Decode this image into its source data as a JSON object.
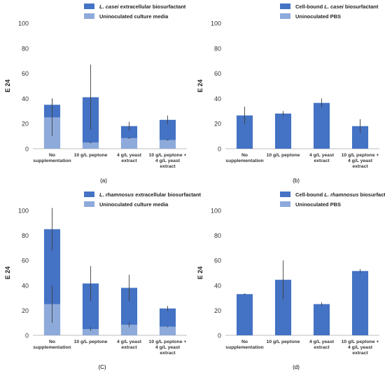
{
  "chart_data": [
    {
      "type": "bar",
      "panel_label": "(a)",
      "ylabel": "E 24",
      "ylim": [
        0,
        100
      ],
      "yticks": [
        0,
        20,
        40,
        60,
        80,
        100
      ],
      "categories": [
        [
          "No",
          "supplementation"
        ],
        [
          "10 g/L peptone"
        ],
        [
          "4 g/L yeast",
          "extract"
        ],
        [
          "10 g/L peptone +",
          "4 g/L yeast",
          "extract"
        ]
      ],
      "legend": [
        {
          "italic": "L. casei",
          "text": " extracellular biosurfactant",
          "color": "#4472c4"
        },
        {
          "italic": "",
          "text": "Uninoculated culture media",
          "color": "#8eaadb"
        }
      ],
      "series": [
        {
          "name": "L. casei extracellular biosurfactant",
          "values": [
            35,
            41,
            18,
            23
          ],
          "err": [
            5,
            26,
            3.5,
            3.5
          ],
          "color": "#4472c4"
        },
        {
          "name": "Uninoculated culture media",
          "values": [
            25,
            5,
            8.5,
            7
          ],
          "err": [
            15,
            0,
            0,
            0
          ],
          "color": "#8eaadb"
        }
      ]
    },
    {
      "type": "bar",
      "panel_label": "(b)",
      "ylabel": "E 24",
      "ylim": [
        0,
        100
      ],
      "yticks": [
        0,
        20,
        40,
        60,
        80,
        100
      ],
      "categories": [
        [
          "No",
          "supplementation"
        ],
        [
          "10 g/L peptone"
        ],
        [
          "4 g/L yeast",
          "extract"
        ],
        [
          "10 g/L peptone +",
          "4 g/L yeast",
          "extract"
        ]
      ],
      "legend": [
        {
          "italic": "",
          "text": "Cell-bound ",
          "italic2": "L. casei",
          "text2": " biosurfactant",
          "color": "#4472c4"
        },
        {
          "italic": "",
          "text": "Uninoculated PBS",
          "color": "#8eaadb"
        }
      ],
      "series": [
        {
          "name": "Cell-bound L. casei biosurfactant",
          "values": [
            26.5,
            28,
            36.5,
            18
          ],
          "err": [
            7,
            2,
            3.5,
            5.5
          ],
          "color": "#4472c4"
        }
      ]
    },
    {
      "type": "bar",
      "panel_label": "(C)",
      "ylabel": "E 24",
      "ylim": [
        0,
        100
      ],
      "yticks": [
        0,
        20,
        40,
        60,
        80,
        100
      ],
      "categories": [
        [
          "No",
          "supplementation"
        ],
        [
          "10 g/L peptone"
        ],
        [
          "4 g/L yeast",
          "extract"
        ],
        [
          "10 g/L peptone +",
          "4 g/L yeast",
          "extract"
        ]
      ],
      "legend": [
        {
          "italic": "L. rhamnosus",
          "text": " extracellular biosurfactant",
          "color": "#4472c4"
        },
        {
          "italic": "",
          "text": "Uninoculated culture media",
          "color": "#8eaadb"
        }
      ],
      "series": [
        {
          "name": "L. rhamnosus extracellular biosurfactant",
          "values": [
            85,
            41.5,
            38,
            21.5
          ],
          "err": [
            17,
            14,
            10.5,
            2
          ],
          "color": "#4472c4"
        },
        {
          "name": "Uninoculated culture media",
          "values": [
            25,
            5,
            8.5,
            7
          ],
          "err": [
            15,
            1.5,
            2,
            0.5
          ],
          "color": "#8eaadb"
        }
      ]
    },
    {
      "type": "bar",
      "panel_label": "(d)",
      "ylabel": "E 24",
      "ylim": [
        0,
        100
      ],
      "yticks": [
        0,
        20,
        40,
        60,
        80,
        100
      ],
      "categories": [
        [
          "No",
          "supplementation"
        ],
        [
          "10 g/L peptone"
        ],
        [
          "4 g/L yeast",
          "extract"
        ],
        [
          "10 g/L peptone +",
          "4 g/L yeast",
          "extract"
        ]
      ],
      "legend": [
        {
          "italic": "",
          "text": "Cell-bound ",
          "italic2": "L. rhamnosus",
          "text2": " biosurfactant",
          "color": "#4472c4"
        },
        {
          "italic": "",
          "text": "Uninoculated PBS",
          "color": "#8eaadb"
        }
      ],
      "series": [
        {
          "name": "Cell-bound L. rhamnosus biosurfactant",
          "values": [
            33,
            44.5,
            25,
            51.5
          ],
          "err": [
            0,
            15.5,
            1.5,
            1.5
          ],
          "color": "#4472c4"
        }
      ]
    }
  ]
}
